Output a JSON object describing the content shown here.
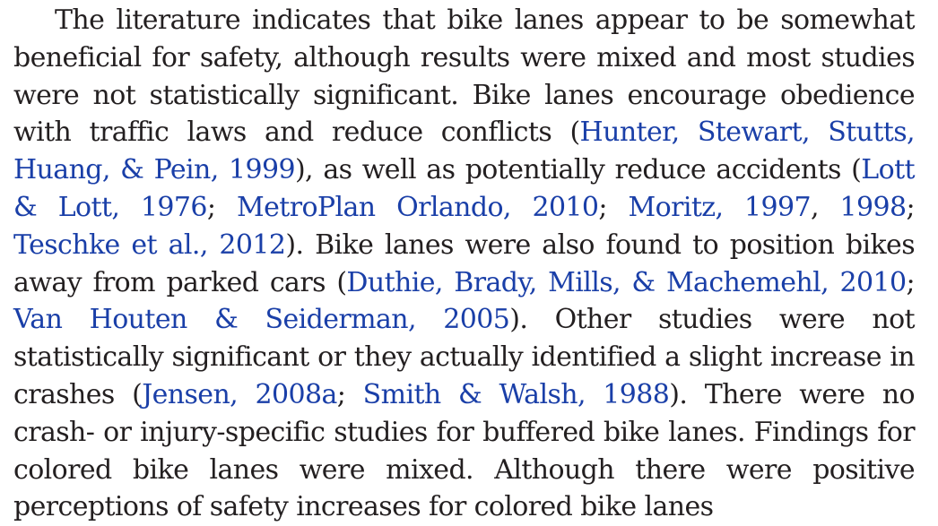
{
  "paragraph": {
    "t1": "The literature indicates that bike lanes appear to be somewhat beneficial for safety, although results were mixed and most studies were not statistically significant. Bike lanes encourage obedience with traffic laws and reduce conflicts (",
    "ref1": "Hunter, Stewart, Stutts, Huang, & Pein, 1999",
    "t2": "), as well as potentially reduce accidents (",
    "ref2": "Lott & Lott, 1976",
    "t3": "; ",
    "ref3": "MetroPlan Orlando, 2010",
    "t4": "; ",
    "ref4": "Moritz, 1997",
    "t5": ", ",
    "ref5": "1998",
    "t6": "; ",
    "ref6": "Teschke et al., 2012",
    "t7": "). Bike lanes were also found to position bikes away from parked cars (",
    "ref7": "Duthie, Brady, Mills, & Machemehl, 2010",
    "t8": "; ",
    "ref8": "Van Houten & Seiderman, 2005",
    "t9": "). Other studies were not statistically significant or they actually identified a slight increase in crashes (",
    "ref9": "Jensen, 2008a",
    "t10": "; ",
    "ref10": "Smith & Walsh, 1988",
    "t11": "). There were no crash- or injury-specific studies for buffered bike lanes. Findings for colored bike lanes were mixed. Although there were positive perceptions of safety increases for colored bike lanes"
  },
  "colors": {
    "text": "#231f20",
    "link": "#1a3fa8",
    "background": "#ffffff"
  }
}
